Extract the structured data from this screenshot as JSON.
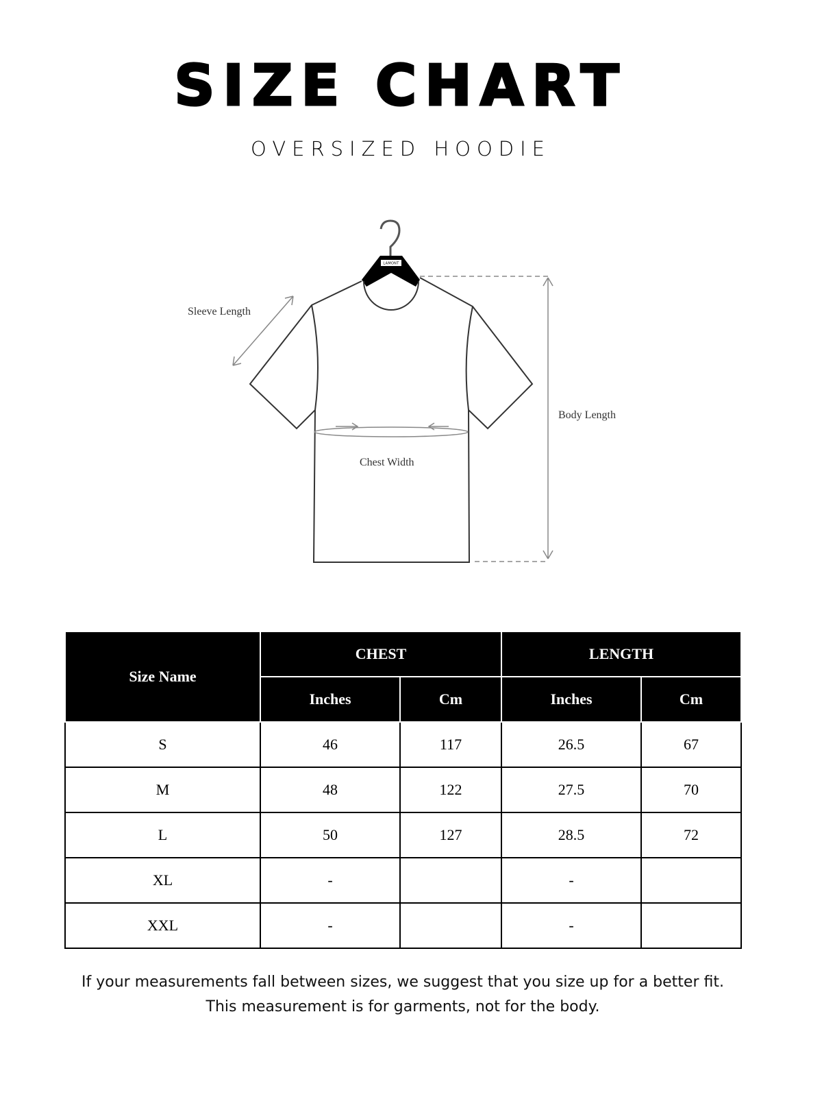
{
  "title": "SIZE CHART",
  "subtitle": "OVERSIZED HOODIE",
  "diagram": {
    "hanger_brand": "LAMONT",
    "labels": {
      "sleeve": "Sleeve Length",
      "body": "Body Length",
      "chest": "Chest Width"
    }
  },
  "table": {
    "size_header": "Size Name",
    "groups": [
      "CHEST",
      "LENGTH"
    ],
    "units": [
      "Inches",
      "Cm",
      "Inches",
      "Cm"
    ],
    "rows": [
      {
        "size": "S",
        "chest_in": "46",
        "chest_cm": "117",
        "length_in": "26.5",
        "length_cm": "67"
      },
      {
        "size": "M",
        "chest_in": "48",
        "chest_cm": "122",
        "length_in": "27.5",
        "length_cm": "70"
      },
      {
        "size": "L",
        "chest_in": "50",
        "chest_cm": "127",
        "length_in": "28.5",
        "length_cm": "72"
      },
      {
        "size": "XL",
        "chest_in": "-",
        "chest_cm": "",
        "length_in": "-",
        "length_cm": ""
      },
      {
        "size": "XXL",
        "chest_in": "-",
        "chest_cm": "",
        "length_in": "-",
        "length_cm": ""
      }
    ]
  },
  "footer": {
    "line1": "If your measurements fall between sizes, we suggest that you size up for a better fit.",
    "line2": "This measurement is for garments, not for the body."
  }
}
